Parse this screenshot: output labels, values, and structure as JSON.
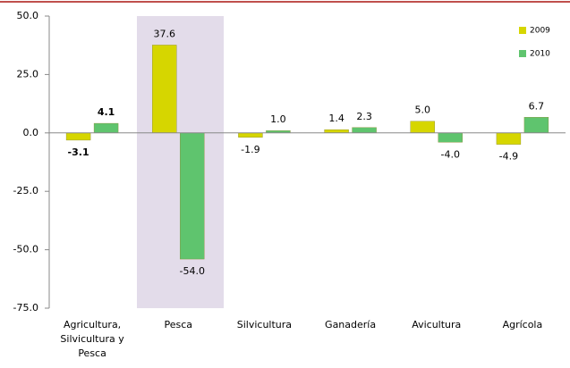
{
  "chart_data": {
    "type": "bar",
    "categories": [
      "Agricultura, Silvicultura y Pesca",
      "Pesca",
      "Silvicultura",
      "Ganadería",
      "Avicultura",
      "Agrícola"
    ],
    "series": [
      {
        "name": "2009",
        "color": "#d6d600",
        "values": [
          -3.1,
          37.6,
          -1.9,
          1.4,
          5.0,
          -4.9
        ],
        "value_labels": [
          "-3.1",
          "37.6",
          "-1.9",
          "1.4",
          "5.0",
          "-4.9"
        ]
      },
      {
        "name": "2010",
        "color": "#5fc46e",
        "values": [
          4.1,
          -54.0,
          1.0,
          2.3,
          -4.0,
          6.7
        ],
        "value_labels": [
          "4.1",
          "-54.0",
          "1.0",
          "2.3",
          "-4.0",
          "6.7"
        ]
      }
    ],
    "ylim": [
      -75,
      50
    ],
    "yticks": [
      {
        "value": -75,
        "label": "-75.0"
      },
      {
        "value": -50,
        "label": "-50.0"
      },
      {
        "value": -25,
        "label": "-25.0"
      },
      {
        "value": 0,
        "label": "0.0"
      },
      {
        "value": 25,
        "label": "25.0"
      },
      {
        "value": 50,
        "label": "50.0"
      }
    ],
    "legend": "top-right"
  }
}
